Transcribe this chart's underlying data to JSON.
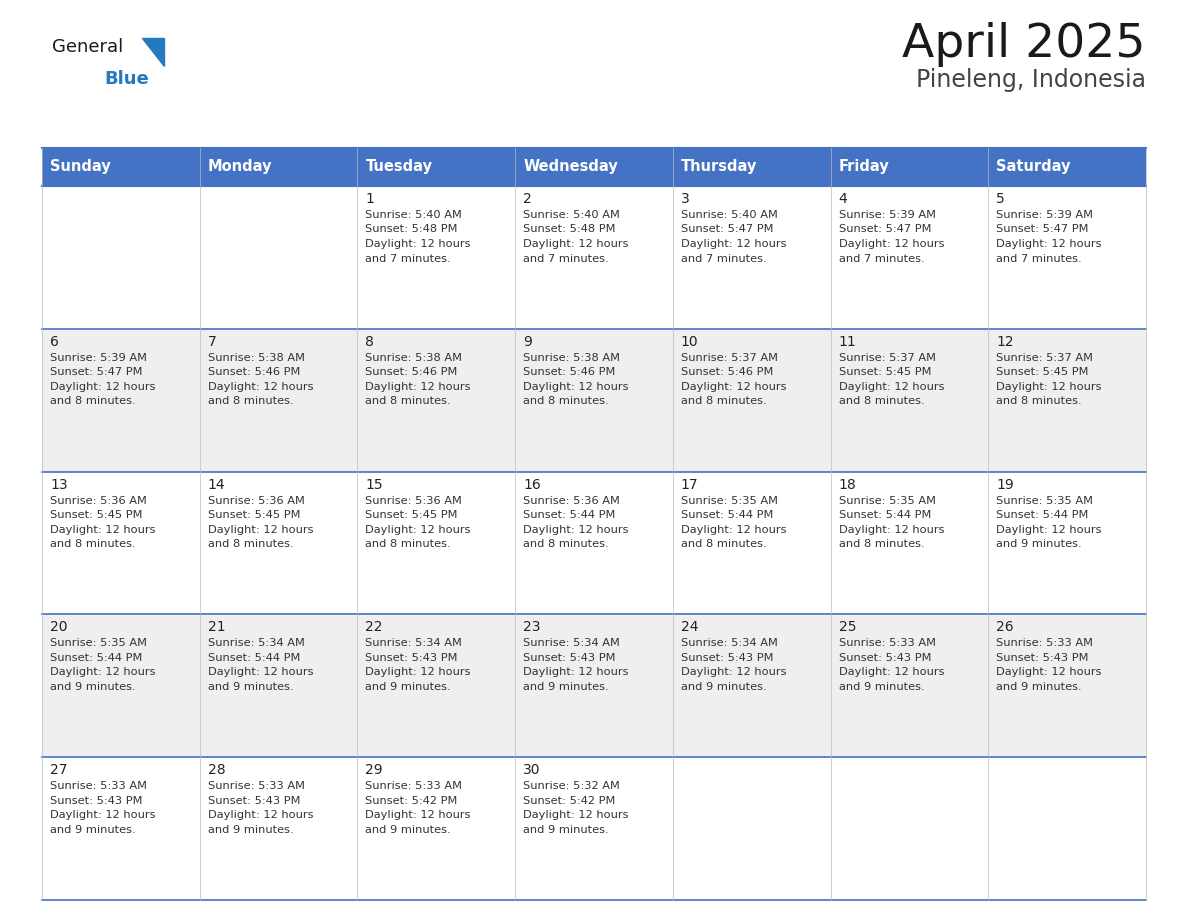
{
  "title": "April 2025",
  "subtitle": "Pineleng, Indonesia",
  "days_of_week": [
    "Sunday",
    "Monday",
    "Tuesday",
    "Wednesday",
    "Thursday",
    "Friday",
    "Saturday"
  ],
  "header_bg": "#4472C4",
  "header_text": "#FFFFFF",
  "cell_bg_white": "#FFFFFF",
  "cell_bg_gray": "#EFEFEF",
  "cell_border_color": "#4472C4",
  "day_num_color": "#222222",
  "text_color": "#333333",
  "title_color": "#1a1a1a",
  "subtitle_color": "#444444",
  "logo_general_color": "#1a1a1a",
  "logo_blue_color": "#2479BF",
  "calendar_data": [
    {
      "day": 1,
      "row": 0,
      "col": 2,
      "sunrise": "5:40 AM",
      "sunset": "5:48 PM",
      "dl_suffix": "7 minutes."
    },
    {
      "day": 2,
      "row": 0,
      "col": 3,
      "sunrise": "5:40 AM",
      "sunset": "5:48 PM",
      "dl_suffix": "7 minutes."
    },
    {
      "day": 3,
      "row": 0,
      "col": 4,
      "sunrise": "5:40 AM",
      "sunset": "5:47 PM",
      "dl_suffix": "7 minutes."
    },
    {
      "day": 4,
      "row": 0,
      "col": 5,
      "sunrise": "5:39 AM",
      "sunset": "5:47 PM",
      "dl_suffix": "7 minutes."
    },
    {
      "day": 5,
      "row": 0,
      "col": 6,
      "sunrise": "5:39 AM",
      "sunset": "5:47 PM",
      "dl_suffix": "7 minutes."
    },
    {
      "day": 6,
      "row": 1,
      "col": 0,
      "sunrise": "5:39 AM",
      "sunset": "5:47 PM",
      "dl_suffix": "8 minutes."
    },
    {
      "day": 7,
      "row": 1,
      "col": 1,
      "sunrise": "5:38 AM",
      "sunset": "5:46 PM",
      "dl_suffix": "8 minutes."
    },
    {
      "day": 8,
      "row": 1,
      "col": 2,
      "sunrise": "5:38 AM",
      "sunset": "5:46 PM",
      "dl_suffix": "8 minutes."
    },
    {
      "day": 9,
      "row": 1,
      "col": 3,
      "sunrise": "5:38 AM",
      "sunset": "5:46 PM",
      "dl_suffix": "8 minutes."
    },
    {
      "day": 10,
      "row": 1,
      "col": 4,
      "sunrise": "5:37 AM",
      "sunset": "5:46 PM",
      "dl_suffix": "8 minutes."
    },
    {
      "day": 11,
      "row": 1,
      "col": 5,
      "sunrise": "5:37 AM",
      "sunset": "5:45 PM",
      "dl_suffix": "8 minutes."
    },
    {
      "day": 12,
      "row": 1,
      "col": 6,
      "sunrise": "5:37 AM",
      "sunset": "5:45 PM",
      "dl_suffix": "8 minutes."
    },
    {
      "day": 13,
      "row": 2,
      "col": 0,
      "sunrise": "5:36 AM",
      "sunset": "5:45 PM",
      "dl_suffix": "8 minutes."
    },
    {
      "day": 14,
      "row": 2,
      "col": 1,
      "sunrise": "5:36 AM",
      "sunset": "5:45 PM",
      "dl_suffix": "8 minutes."
    },
    {
      "day": 15,
      "row": 2,
      "col": 2,
      "sunrise": "5:36 AM",
      "sunset": "5:45 PM",
      "dl_suffix": "8 minutes."
    },
    {
      "day": 16,
      "row": 2,
      "col": 3,
      "sunrise": "5:36 AM",
      "sunset": "5:44 PM",
      "dl_suffix": "8 minutes."
    },
    {
      "day": 17,
      "row": 2,
      "col": 4,
      "sunrise": "5:35 AM",
      "sunset": "5:44 PM",
      "dl_suffix": "8 minutes."
    },
    {
      "day": 18,
      "row": 2,
      "col": 5,
      "sunrise": "5:35 AM",
      "sunset": "5:44 PM",
      "dl_suffix": "8 minutes."
    },
    {
      "day": 19,
      "row": 2,
      "col": 6,
      "sunrise": "5:35 AM",
      "sunset": "5:44 PM",
      "dl_suffix": "9 minutes."
    },
    {
      "day": 20,
      "row": 3,
      "col": 0,
      "sunrise": "5:35 AM",
      "sunset": "5:44 PM",
      "dl_suffix": "9 minutes."
    },
    {
      "day": 21,
      "row": 3,
      "col": 1,
      "sunrise": "5:34 AM",
      "sunset": "5:44 PM",
      "dl_suffix": "9 minutes."
    },
    {
      "day": 22,
      "row": 3,
      "col": 2,
      "sunrise": "5:34 AM",
      "sunset": "5:43 PM",
      "dl_suffix": "9 minutes."
    },
    {
      "day": 23,
      "row": 3,
      "col": 3,
      "sunrise": "5:34 AM",
      "sunset": "5:43 PM",
      "dl_suffix": "9 minutes."
    },
    {
      "day": 24,
      "row": 3,
      "col": 4,
      "sunrise": "5:34 AM",
      "sunset": "5:43 PM",
      "dl_suffix": "9 minutes."
    },
    {
      "day": 25,
      "row": 3,
      "col": 5,
      "sunrise": "5:33 AM",
      "sunset": "5:43 PM",
      "dl_suffix": "9 minutes."
    },
    {
      "day": 26,
      "row": 3,
      "col": 6,
      "sunrise": "5:33 AM",
      "sunset": "5:43 PM",
      "dl_suffix": "9 minutes."
    },
    {
      "day": 27,
      "row": 4,
      "col": 0,
      "sunrise": "5:33 AM",
      "sunset": "5:43 PM",
      "dl_suffix": "9 minutes."
    },
    {
      "day": 28,
      "row": 4,
      "col": 1,
      "sunrise": "5:33 AM",
      "sunset": "5:43 PM",
      "dl_suffix": "9 minutes."
    },
    {
      "day": 29,
      "row": 4,
      "col": 2,
      "sunrise": "5:33 AM",
      "sunset": "5:42 PM",
      "dl_suffix": "9 minutes."
    },
    {
      "day": 30,
      "row": 4,
      "col": 3,
      "sunrise": "5:32 AM",
      "sunset": "5:42 PM",
      "dl_suffix": "9 minutes."
    }
  ]
}
